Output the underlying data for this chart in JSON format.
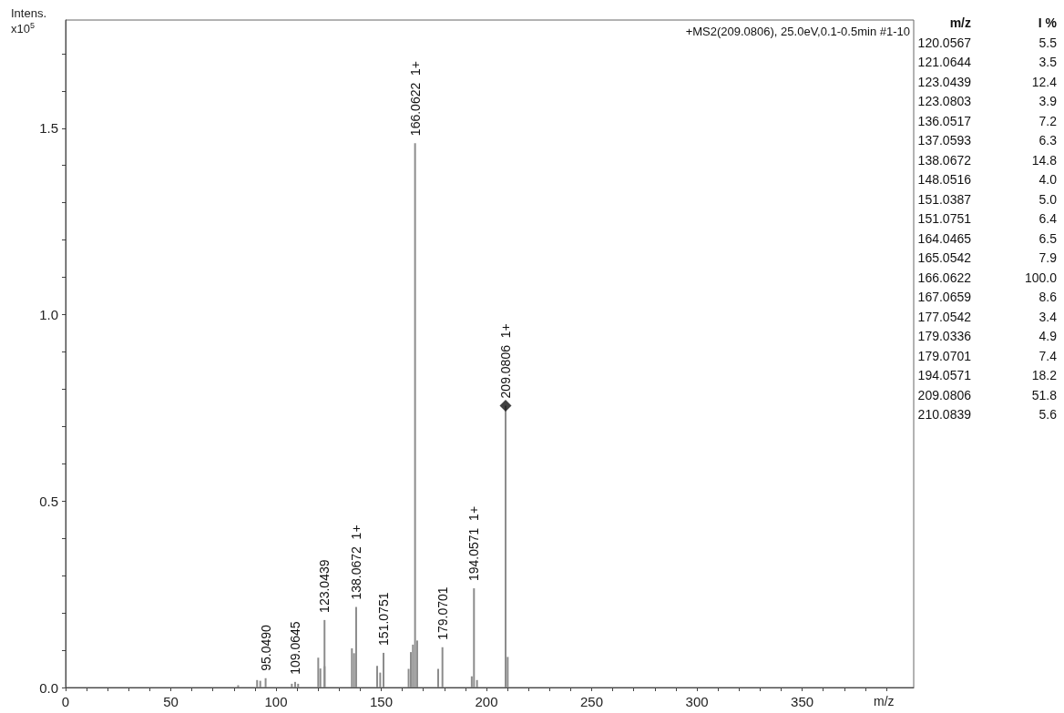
{
  "chart_data": {
    "type": "bar",
    "title": "+MS2(209.0806), 25.0eV,0.1-0.5min #1-10",
    "xlabel": "m/z",
    "ylabel": "Intens. x10$^{5}$",
    "xlim": [
      0,
      403
    ],
    "ylim": [
      0,
      1.79
    ],
    "xticks": [
      0,
      {
        "value": 10,
        "label": null
      },
      {
        "value": 20,
        "label": null
      },
      {
        "value": 30,
        "label": null
      },
      {
        "value": 40,
        "label": null
      },
      50,
      {
        "value": 60,
        "label": null
      },
      {
        "value": 70,
        "label": null
      },
      {
        "value": 80,
        "label": null
      },
      {
        "value": 90,
        "label": null
      },
      100,
      {
        "value": 110,
        "label": null
      },
      {
        "value": 120,
        "label": null
      },
      {
        "value": 130,
        "label": null
      },
      {
        "value": 140,
        "label": null
      },
      150,
      {
        "value": 160,
        "label": null
      },
      {
        "value": 170,
        "label": null
      },
      {
        "value": 180,
        "label": null
      },
      {
        "value": 190,
        "label": null
      },
      200,
      {
        "value": 210,
        "label": null
      },
      {
        "value": 220,
        "label": null
      },
      {
        "value": 230,
        "label": null
      },
      {
        "value": 240,
        "label": null
      },
      250,
      {
        "value": 260,
        "label": null
      },
      {
        "value": 270,
        "label": null
      },
      {
        "value": 280,
        "label": null
      },
      {
        "value": 290,
        "label": null
      },
      300,
      {
        "value": 310,
        "label": null
      },
      {
        "value": 320,
        "label": null
      },
      {
        "value": 330,
        "label": null
      },
      {
        "value": 340,
        "label": null
      },
      350,
      {
        "value": 360,
        "label": null
      },
      {
        "value": 370,
        "label": null
      },
      {
        "value": 380,
        "label": null
      },
      {
        "value": 390,
        "label": null
      }
    ],
    "yticks": [
      {
        "value": 0,
        "label": "0.0"
      },
      {
        "value": 0.1,
        "label": null
      },
      {
        "value": 0.2,
        "label": null
      },
      {
        "value": 0.3,
        "label": null
      },
      {
        "value": 0.4,
        "label": null
      },
      0.5,
      {
        "value": 0.6,
        "label": null
      },
      {
        "value": 0.7,
        "label": null
      },
      {
        "value": 0.8,
        "label": null
      },
      {
        "value": 0.9,
        "label": null
      },
      {
        "value": 1,
        "label": "1.0"
      },
      {
        "value": 1.1,
        "label": null
      },
      {
        "value": 1.2,
        "label": null
      },
      {
        "value": 1.3,
        "label": null
      },
      {
        "value": 1.4,
        "label": null
      },
      1.5,
      {
        "value": 1.6,
        "label": null
      },
      {
        "value": 1.7,
        "label": null
      }
    ],
    "grid": false,
    "series": [
      {
        "color": "#8c8c8c",
        "x": [
          82,
          91,
          92.5,
          95.049,
          107.5,
          109.0645,
          110.5,
          120.0567,
          121.0644,
          123.0439,
          123.0803,
          136.0517,
          137.0593,
          138.0672,
          148.0516,
          149.5,
          151.0387,
          151.0751,
          163,
          164.0465,
          165.0542,
          166.0622,
          167.0659,
          177.0542,
          179.0336,
          179.0701,
          193,
          194.0571,
          195.5,
          209.0806,
          210.0839
        ],
        "values": [
          0.006,
          0.02,
          0.018,
          0.025,
          0.01,
          0.015,
          0.01,
          0.08,
          0.051,
          0.181,
          0.057,
          0.105,
          0.092,
          0.216,
          0.058,
          0.04,
          null,
          0.093,
          0.05,
          0.095,
          0.115,
          1.46,
          0.126,
          0.05,
          null,
          0.108,
          0.03,
          0.266,
          0.02,
          0.756,
          0.082
        ]
      },
      {
        "type": "scatter",
        "color": "#111111",
        "marker": "diamond",
        "x": [
          209.0806
        ],
        "values": [
          0.756
        ]
      }
    ],
    "annotations": [
      {
        "text": "95.0490",
        "x": 95.049,
        "y": 0.025
      },
      {
        "text": "109.0645",
        "x": 109.0645,
        "y": 0.015
      },
      {
        "text": "123.0439",
        "x": 123.0439,
        "y": 0.181
      },
      {
        "text": "138.0672  1+",
        "x": 138.0672,
        "y": 0.216
      },
      {
        "text": "151.0751",
        "x": 151.0751,
        "y": 0.093
      },
      {
        "text": "166.0622  1+",
        "x": 166.0622,
        "y": 1.46
      },
      {
        "text": "179.0701",
        "x": 179.0701,
        "y": 0.108
      },
      {
        "text": "194.0571  1+",
        "x": 194.0571,
        "y": 0.266
      },
      {
        "text": "209.0806  1+",
        "x": 209.0806,
        "y": 0.756
      },
      "m/z",
      "I %",
      "120.0567",
      "5.5",
      "121.0644",
      "3.5",
      "123.0439",
      "12.4",
      "123.0803",
      "3.9",
      "136.0517",
      "7.2",
      "137.0593",
      "6.3",
      "138.0672",
      "14.8",
      "148.0516",
      "4.0",
      "151.0387",
      "5.0",
      "151.0751",
      "6.4",
      "164.0465",
      "6.5",
      "165.0542",
      "7.9",
      "166.0622",
      "100.0",
      "167.0659",
      "8.6",
      "177.0542",
      "3.4",
      "179.0336",
      "4.9",
      "179.0701",
      "7.4",
      "194.0571",
      "18.2",
      "209.0806",
      "51.8",
      "210.0839",
      "5.6"
    ]
  }
}
